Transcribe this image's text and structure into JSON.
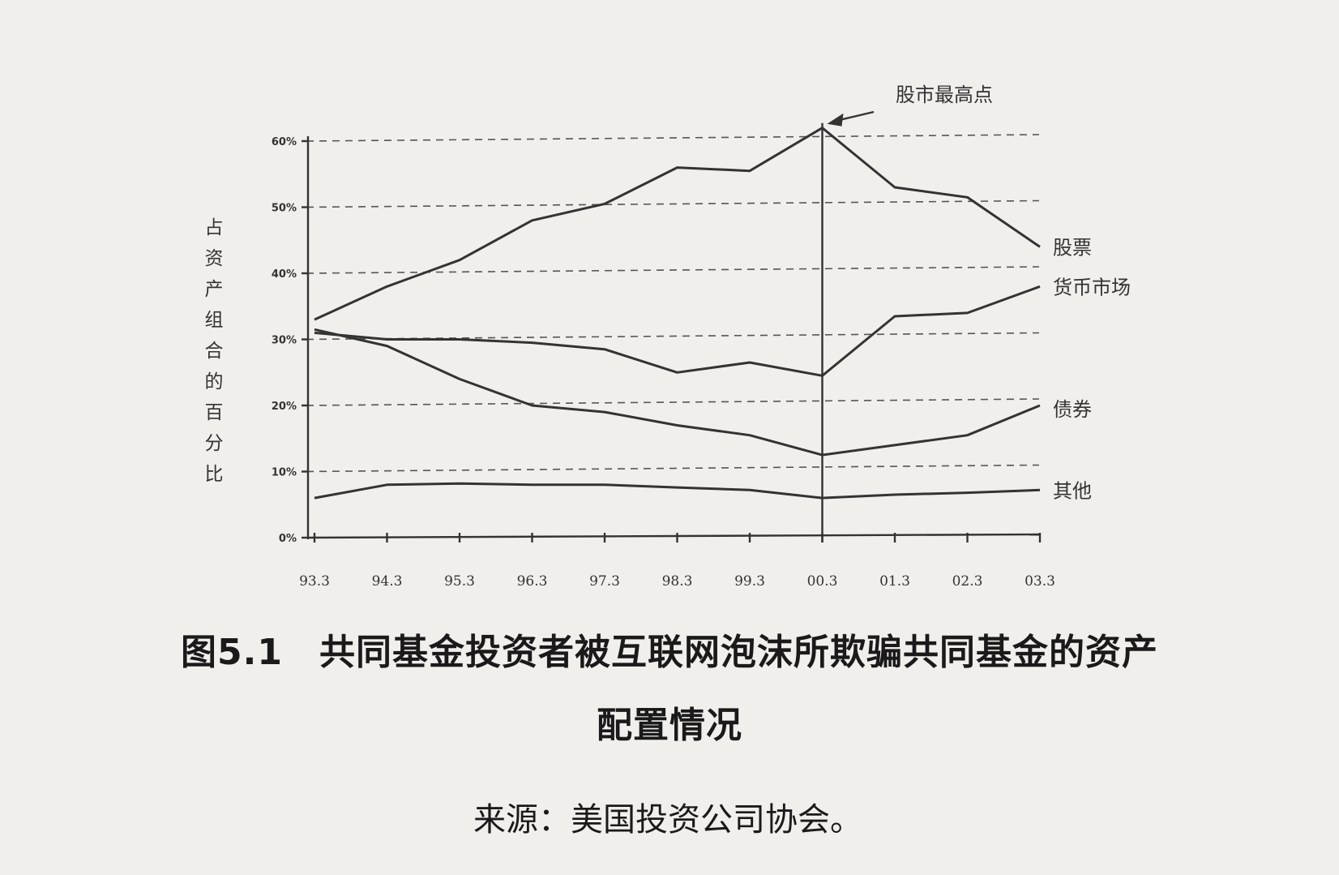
{
  "chart_data": {
    "type": "line",
    "title": "",
    "xlabel": "",
    "ylabel": "占资产组合的百分比",
    "categories": [
      "93.3",
      "94.3",
      "95.3",
      "96.3",
      "97.3",
      "98.3",
      "99.3",
      "00.3",
      "01.3",
      "02.3",
      "03.3"
    ],
    "yticks": [
      "0%",
      "10%",
      "20%",
      "30%",
      "40%",
      "50%",
      "60%"
    ],
    "ylim": [
      0,
      60
    ],
    "grid": true,
    "series": [
      {
        "name": "股票",
        "values": [
          33,
          38,
          42,
          48,
          50.5,
          56,
          55.5,
          62,
          53,
          51.5,
          44
        ]
      },
      {
        "name": "货币市场",
        "values": [
          31,
          30,
          30,
          29.5,
          28.5,
          25,
          26.5,
          24.5,
          33.5,
          34,
          38
        ]
      },
      {
        "name": "债券",
        "values": [
          31.5,
          29,
          24,
          20,
          19,
          17,
          15.5,
          12.5,
          14,
          15.5,
          20
        ]
      },
      {
        "name": "其他",
        "values": [
          6,
          8,
          8.2,
          8,
          8,
          7.6,
          7.2,
          6,
          6.5,
          6.8,
          7.2
        ]
      }
    ],
    "annotation": {
      "text": "股市最高点",
      "category": "00.3"
    }
  },
  "caption": {
    "line1": "图5.1　共同基金投资者被互联网泡沫所欺骗共同基金的资产",
    "line2": "配置情况"
  },
  "source": "来源：美国投资公司协会。"
}
